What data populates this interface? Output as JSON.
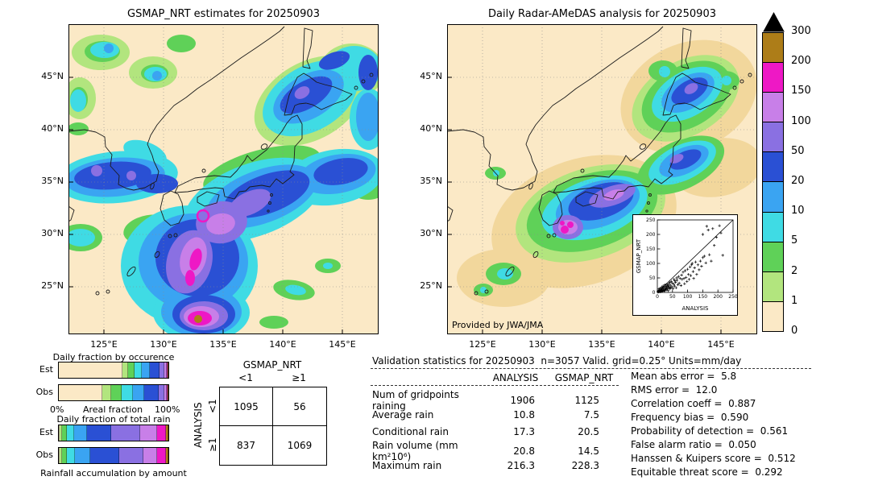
{
  "figure": {
    "left_map_title": "GSMAP_NRT estimates for 20250903",
    "right_map_title": "Daily Radar-AMeDAS analysis for 20250903",
    "credit": "Provided by JWA/JMA"
  },
  "map_axes": {
    "lat_ticks": [
      "45°N",
      "40°N",
      "35°N",
      "30°N",
      "25°N"
    ],
    "lon_ticks": [
      "125°E",
      "130°E",
      "135°E",
      "140°E",
      "145°E"
    ]
  },
  "chart_data": {
    "precip_maps": {
      "type": "heatmap",
      "left_title": "GSMAP_NRT estimates for 20250903",
      "right_title": "Daily Radar-AMeDAS analysis for 20250903",
      "units": "mm/day",
      "lat_ticks": [
        "45°N",
        "40°N",
        "35°N",
        "30°N",
        "25°N"
      ],
      "lon_ticks": [
        "125°E",
        "130°E",
        "135°E",
        "140°E",
        "145°E"
      ],
      "credit": "Provided by JWA/JMA"
    },
    "colorbar": {
      "boundary_labels": [
        "300",
        "200",
        "150",
        "100",
        "50",
        "20",
        "10",
        "5",
        "2",
        "1",
        "0"
      ],
      "segment_colors_top_to_bottom": [
        "#ad7d18",
        "#ee18c5",
        "#c87fe8",
        "#8a70e2",
        "#2a50d4",
        "#3aa4f2",
        "#3fdbe4",
        "#5fd158",
        "#b2e57e",
        "#fbe9c6"
      ],
      "arrow_color": "#000000",
      "units": "mm/day"
    },
    "scatter_inset": {
      "type": "scatter",
      "xlabel": "ANALYSIS",
      "ylabel": "GSMAP_NRT",
      "xlim": [
        0,
        250
      ],
      "ylim": [
        0,
        250
      ],
      "tick_values": [
        0,
        50,
        100,
        150,
        200,
        250
      ],
      "identity_line": true,
      "points": [
        [
          2,
          1
        ],
        [
          3,
          4
        ],
        [
          4,
          2
        ],
        [
          5,
          6
        ],
        [
          5,
          12
        ],
        [
          6,
          3
        ],
        [
          7,
          9
        ],
        [
          8,
          5
        ],
        [
          9,
          2
        ],
        [
          10,
          8
        ],
        [
          10,
          15
        ],
        [
          11,
          4
        ],
        [
          12,
          7
        ],
        [
          13,
          11
        ],
        [
          14,
          3
        ],
        [
          15,
          9
        ],
        [
          15,
          19
        ],
        [
          16,
          6
        ],
        [
          17,
          13
        ],
        [
          18,
          5
        ],
        [
          19,
          22
        ],
        [
          20,
          8
        ],
        [
          21,
          15
        ],
        [
          22,
          4
        ],
        [
          23,
          19
        ],
        [
          24,
          10
        ],
        [
          25,
          26
        ],
        [
          26,
          7
        ],
        [
          27,
          14
        ],
        [
          28,
          21
        ],
        [
          29,
          12
        ],
        [
          30,
          9
        ],
        [
          31,
          18
        ],
        [
          32,
          28
        ],
        [
          33,
          12
        ],
        [
          34,
          24
        ],
        [
          35,
          22
        ],
        [
          36,
          6
        ],
        [
          37,
          16
        ],
        [
          38,
          30
        ],
        [
          40,
          18
        ],
        [
          41,
          12
        ],
        [
          42,
          35
        ],
        [
          43,
          25
        ],
        [
          45,
          15
        ],
        [
          46,
          38
        ],
        [
          48,
          20
        ],
        [
          50,
          32
        ],
        [
          52,
          14
        ],
        [
          54,
          28
        ],
        [
          55,
          45
        ],
        [
          57,
          22
        ],
        [
          58,
          40
        ],
        [
          60,
          35
        ],
        [
          62,
          16
        ],
        [
          64,
          50
        ],
        [
          65,
          42
        ],
        [
          68,
          26
        ],
        [
          70,
          55
        ],
        [
          72,
          32
        ],
        [
          75,
          48
        ],
        [
          78,
          24
        ],
        [
          80,
          60
        ],
        [
          82,
          45
        ],
        [
          85,
          70
        ],
        [
          88,
          48
        ],
        [
          90,
          30
        ],
        [
          92,
          75
        ],
        [
          95,
          52
        ],
        [
          98,
          38
        ],
        [
          100,
          80
        ],
        [
          103,
          62
        ],
        [
          105,
          45
        ],
        [
          108,
          88
        ],
        [
          110,
          58
        ],
        [
          113,
          95
        ],
        [
          115,
          100
        ],
        [
          118,
          72
        ],
        [
          120,
          48
        ],
        [
          123,
          85
        ],
        [
          126,
          105
        ],
        [
          130,
          62
        ],
        [
          134,
          95
        ],
        [
          138,
          78
        ],
        [
          142,
          108
        ],
        [
          146,
          90
        ],
        [
          150,
          120
        ],
        [
          150,
          200
        ],
        [
          155,
          125
        ],
        [
          160,
          102
        ],
        [
          163,
          228
        ],
        [
          168,
          215
        ],
        [
          172,
          130
        ],
        [
          178,
          108
        ],
        [
          183,
          220
        ],
        [
          188,
          162
        ],
        [
          195,
          190
        ],
        [
          205,
          230
        ],
        [
          210,
          205
        ],
        [
          216,
          128
        ]
      ]
    },
    "occurrence_fraction": {
      "type": "stacked-bar",
      "title": "Daily fraction by occurence",
      "rows": [
        "Est",
        "Obs"
      ],
      "xlabel_left": "0%",
      "xlabel_center": "Areal fraction",
      "xlabel_right": "100%",
      "categories_mm_per_day": [
        "0-1",
        "1-2",
        "2-5",
        "5-10",
        "10-20",
        "20-50",
        "50-100",
        "100-150",
        "150-200",
        "200-300"
      ],
      "est_pct": [
        58,
        5,
        6,
        7,
        7,
        9,
        4,
        2.5,
        1,
        0.5
      ],
      "obs_pct": [
        40,
        8,
        9,
        11,
        10,
        13,
        5,
        2.5,
        1,
        0.5
      ]
    },
    "total_rain_fraction": {
      "type": "stacked-bar",
      "title": "Daily fraction of total rain",
      "rows": [
        "Est",
        "Obs"
      ],
      "xlabel": "Rainfall accumulation by amount",
      "categories_mm_per_day": [
        "0-1",
        "1-2",
        "2-5",
        "5-10",
        "10-20",
        "20-50",
        "50-100",
        "100-150",
        "150-200",
        "200-300"
      ],
      "est_pct": [
        1,
        2,
        4,
        7,
        12,
        22,
        26,
        16,
        8,
        2
      ],
      "obs_pct": [
        1,
        2,
        4,
        8,
        14,
        26,
        22,
        13,
        8,
        2
      ]
    },
    "contingency_table": {
      "type": "table",
      "col_group": "GSMAP_NRT",
      "row_group": "ANALYSIS",
      "col_labels": [
        "<1",
        "≥1"
      ],
      "row_labels": [
        "<1",
        "≥1"
      ],
      "values": [
        [
          1095,
          56
        ],
        [
          837,
          1069
        ]
      ]
    },
    "validation_stats": {
      "type": "table",
      "title": "Validation statistics for 20250903  n=3057 Valid. grid=0.25° Units=mm/day",
      "columns": [
        "ANALYSIS",
        "GSMAP_NRT"
      ],
      "rows": [
        [
          "Num of gridpoints raining",
          "1906",
          "1125"
        ],
        [
          "Average rain",
          "10.8",
          "7.5"
        ],
        [
          "Conditional rain",
          "17.3",
          "20.5"
        ],
        [
          "Rain volume (mm km²10⁶)",
          "20.8",
          "14.5"
        ],
        [
          "Maximum rain",
          "216.3",
          "228.3"
        ]
      ]
    },
    "summary_metrics": {
      "items": [
        [
          "Mean abs error",
          "5.8"
        ],
        [
          "RMS error",
          "12.0"
        ],
        [
          "Correlation coeff",
          "0.887"
        ],
        [
          "Frequency bias",
          "0.590"
        ],
        [
          "Probability of detection",
          "0.561"
        ],
        [
          "False alarm ratio",
          "0.050"
        ],
        [
          "Hanssen & Kuipers score",
          "0.512"
        ],
        [
          "Equitable threat score",
          "0.292"
        ]
      ]
    }
  }
}
